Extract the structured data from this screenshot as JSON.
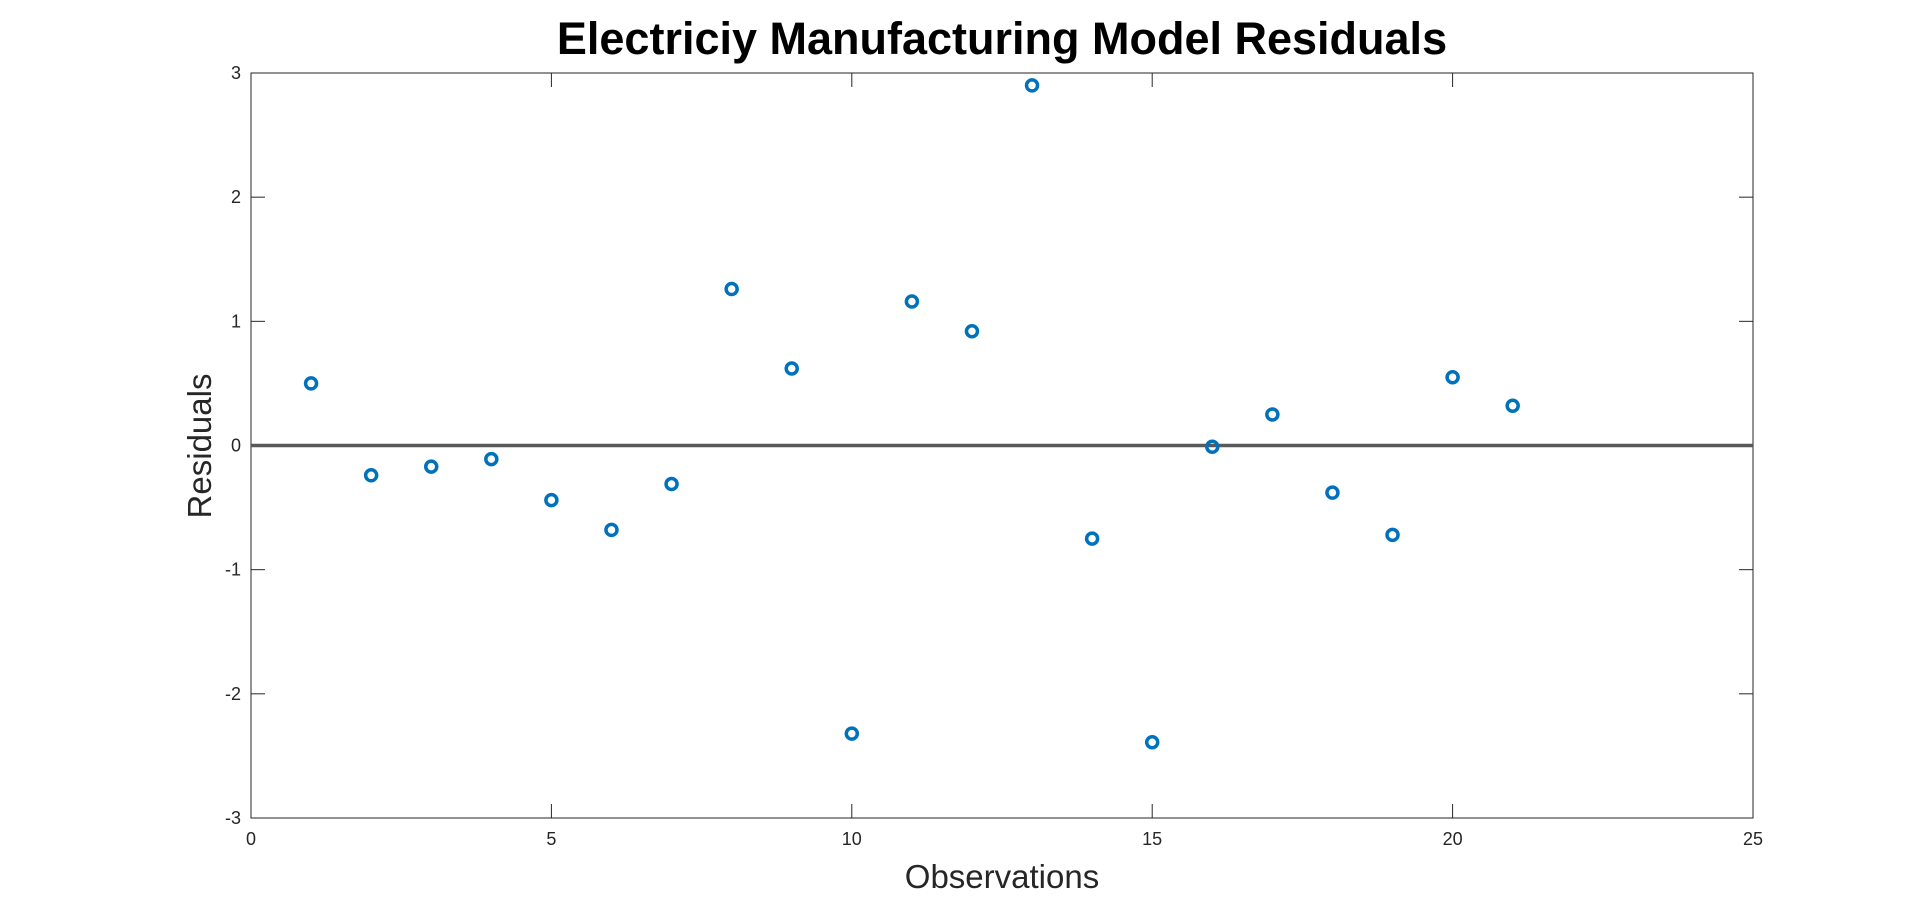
{
  "chart_data": {
    "type": "scatter",
    "title": "Electriciy Manufacturing Model Residuals",
    "xlabel": "Observations",
    "ylabel": "Residuals",
    "xlim": [
      0,
      25
    ],
    "ylim": [
      -3,
      3
    ],
    "xticks": [
      "0",
      "5",
      "10",
      "15",
      "20",
      "25"
    ],
    "yticks": [
      "3",
      "2",
      "1",
      "0",
      "-1",
      "-2",
      "-3"
    ],
    "grid": false,
    "reference_line": {
      "y": 0,
      "color": "#595959"
    },
    "marker": "circle-open",
    "colors": {
      "marker": "#0072BD",
      "axes": "#262626"
    },
    "series": [
      {
        "x": [
          1,
          2,
          3,
          4,
          5,
          6,
          7,
          8,
          9,
          10,
          11,
          12,
          13,
          14,
          15,
          16,
          17,
          18,
          19,
          20,
          21
        ],
        "y": [
          0.5,
          -0.24,
          -0.17,
          -0.11,
          -0.44,
          -0.68,
          -0.31,
          1.26,
          0.62,
          -2.32,
          1.16,
          0.92,
          2.9,
          -0.75,
          -2.39,
          -0.01,
          0.25,
          -0.38,
          -0.72,
          0.55,
          0.32
        ]
      }
    ]
  }
}
